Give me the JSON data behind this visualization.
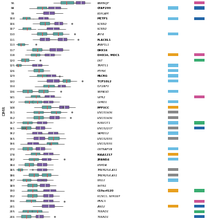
{
  "dmr_labels": [
    "56",
    "88",
    "99",
    "104",
    "106",
    "107",
    "110",
    "111",
    "113",
    "117",
    "118",
    "120",
    "125",
    "126",
    "129",
    "130",
    "134",
    "136",
    "141",
    "142",
    "148",
    "151",
    "152",
    "157",
    "161",
    "162",
    "165",
    "166",
    "170",
    "178",
    "182",
    "184",
    "185",
    "186",
    "187",
    "189",
    "190",
    "192",
    "196",
    "201",
    "205",
    "206"
  ],
  "gene_labels": [
    "FAM86JP",
    "CFAP299",
    "EGFLAM",
    "MCTP1",
    "KCNN2",
    "KCNN2",
    "AFF4",
    "PLAC8L1",
    "AFAP1L1",
    "DHX16",
    "DHX16, MDC1",
    "DST",
    "TRMT11",
    "PTPRK",
    "PACRG",
    "TCP10L2",
    "IGF2BP3",
    "SEMA3D",
    "VIPR2",
    "CSMD1",
    "PPP3CC",
    "LINC01606",
    "LINC01606",
    "RUNX1T1",
    "LINC02237",
    "SAMD12",
    "LINC02055",
    "LINC02055",
    "CNTNAP3B",
    "KIAA1217",
    "ZFAND4",
    "LRMDA",
    "TMEM254-AS1",
    "TMEM254-AS1",
    "NRG3",
    "SHTN1",
    "C19orf120",
    "KCNC1, SERGEF",
    "PRRL5",
    "ANO2",
    "TXNRD1",
    "TXNRD1"
  ],
  "gene_bold": [
    false,
    true,
    false,
    true,
    false,
    false,
    false,
    true,
    false,
    true,
    true,
    false,
    false,
    false,
    true,
    true,
    false,
    false,
    false,
    false,
    true,
    false,
    false,
    false,
    false,
    false,
    false,
    false,
    false,
    true,
    true,
    false,
    false,
    false,
    false,
    false,
    true,
    false,
    false,
    false,
    false,
    false
  ],
  "teal_color": "#5CA8A3",
  "purple_color": "#7B5EA7",
  "blue_sq": "#6BBDE3",
  "orange_sq": "#E8A020",
  "gray_sq": "#8A8A8A",
  "green_sq": "#3AAD72",
  "dark_blue_sq": "#2466A8",
  "pink_sq": "#CC5595",
  "rows": [
    {
      "dmr": "56",
      "boxes": [
        {
          "q1": 0.58,
          "med": 0.65,
          "q3": 0.74,
          "wlo": 0.48,
          "whi": 0.82,
          "col": "teal"
        },
        {
          "q1": 0.77,
          "med": 0.83,
          "q3": 0.88,
          "wlo": 0.7,
          "whi": 0.95,
          "col": "purple"
        }
      ],
      "sq1": null,
      "sq2": "pink"
    },
    {
      "dmr": "88",
      "boxes": [
        {
          "q1": 0.28,
          "med": 0.34,
          "q3": 0.4,
          "wlo": 0.18,
          "whi": 0.5,
          "col": "teal"
        },
        {
          "q1": 0.42,
          "med": 0.5,
          "q3": 0.58,
          "wlo": 0.32,
          "whi": 0.66,
          "col": "purple"
        }
      ],
      "sq1": "blue",
      "sq2": "dark_blue"
    },
    {
      "dmr": "99",
      "boxes": [
        {
          "q1": 0.36,
          "med": 0.43,
          "q3": 0.5,
          "wlo": 0.26,
          "whi": 0.6,
          "col": "purple"
        }
      ],
      "sq1": null,
      "sq2": null
    },
    {
      "dmr": "104",
      "boxes": [
        {
          "q1": 0.1,
          "med": 0.14,
          "q3": 0.19,
          "wlo": 0.05,
          "whi": 0.24,
          "col": "teal"
        },
        {
          "q1": 0.3,
          "med": 0.36,
          "q3": 0.42,
          "wlo": 0.22,
          "whi": 0.5,
          "col": "purple"
        }
      ],
      "sq1": "blue",
      "sq2": "dark_blue"
    },
    {
      "dmr": "106",
      "boxes": [
        {
          "q1": 0.32,
          "med": 0.38,
          "q3": 0.44,
          "wlo": 0.22,
          "whi": 0.52,
          "col": "teal"
        },
        {
          "q1": 0.5,
          "med": 0.55,
          "q3": 0.6,
          "wlo": 0.43,
          "whi": 0.66,
          "col": "purple",
          "outlier": 0.72
        }
      ],
      "sq1": null,
      "sq2": null
    },
    {
      "dmr": "107",
      "boxes": [
        {
          "q1": 0.1,
          "med": 0.15,
          "q3": 0.2,
          "wlo": 0.04,
          "whi": 0.26,
          "col": "teal"
        },
        {
          "q1": 0.4,
          "med": 0.48,
          "q3": 0.56,
          "wlo": 0.28,
          "whi": 0.64,
          "col": "purple"
        }
      ],
      "sq1": null,
      "sq2": null
    },
    {
      "dmr": "110",
      "boxes": [
        {
          "q1": 0.28,
          "med": 0.34,
          "q3": 0.4,
          "wlo": 0.2,
          "whi": 0.48,
          "col": "teal"
        },
        {
          "q1": 0.48,
          "med": 0.54,
          "q3": 0.6,
          "wlo": 0.38,
          "whi": 0.68,
          "col": "teal",
          "outlier": 0.75
        }
      ],
      "sq1": "blue",
      "sq2": null
    },
    {
      "dmr": "111",
      "boxes": [
        {
          "q1": 0.32,
          "med": 0.38,
          "q3": 0.44,
          "wlo": 0.22,
          "whi": 0.52,
          "col": "purple"
        },
        {
          "q1": 0.54,
          "med": 0.6,
          "q3": 0.66,
          "wlo": 0.44,
          "whi": 0.74,
          "col": "purple",
          "outlier": 0.8
        }
      ],
      "sq1": null,
      "sq2": null
    },
    {
      "dmr": "113",
      "boxes": [
        {
          "q1": 0.04,
          "med": 0.07,
          "q3": 0.12,
          "wlo": 0.01,
          "whi": 0.17,
          "col": "teal",
          "outlier": 0.26
        }
      ],
      "sq1": null,
      "sq2": null
    },
    {
      "dmr": "117",
      "boxes": [
        {
          "q1": 0.22,
          "med": 0.28,
          "q3": 0.34,
          "wlo": 0.14,
          "whi": 0.42,
          "col": "teal"
        },
        {
          "q1": 0.44,
          "med": 0.52,
          "q3": 0.6,
          "wlo": 0.32,
          "whi": 0.68,
          "col": "purple"
        }
      ],
      "sq1": null,
      "sq2": null
    },
    {
      "dmr": "118",
      "boxes": [
        {
          "q1": 0.2,
          "med": 0.26,
          "q3": 0.32,
          "wlo": 0.12,
          "whi": 0.4,
          "col": "teal"
        },
        {
          "q1": 0.38,
          "med": 0.44,
          "q3": 0.5,
          "wlo": 0.28,
          "whi": 0.58,
          "col": "purple"
        }
      ],
      "sq1": "orange",
      "sq2": "pink"
    },
    {
      "dmr": "120",
      "boxes": [
        {
          "q1": 0.08,
          "med": 0.12,
          "q3": 0.18,
          "wlo": 0.03,
          "whi": 0.25,
          "col": "teal",
          "outlier": 0.32
        }
      ],
      "sq1": null,
      "sq2": "green"
    },
    {
      "dmr": "125",
      "boxes": [
        {
          "q1": 0.02,
          "med": 0.04,
          "q3": 0.08,
          "wlo": 0.0,
          "whi": 0.14,
          "col": "teal"
        },
        {
          "q1": 0.22,
          "med": 0.28,
          "q3": 0.34,
          "wlo": 0.14,
          "whi": 0.42,
          "col": "purple"
        }
      ],
      "sq1": "blue",
      "sq2": null
    },
    {
      "dmr": "126",
      "boxes": [
        {
          "q1": 0.24,
          "med": 0.3,
          "q3": 0.36,
          "wlo": 0.16,
          "whi": 0.44,
          "col": "teal"
        }
      ],
      "sq1": "blue",
      "sq2": null
    },
    {
      "dmr": "129",
      "boxes": [
        {
          "q1": 0.28,
          "med": 0.34,
          "q3": 0.4,
          "wlo": 0.18,
          "whi": 0.48,
          "col": "teal",
          "outlier": 0.56
        },
        {
          "q1": 0.4,
          "med": 0.46,
          "q3": 0.52,
          "wlo": 0.3,
          "whi": 0.6,
          "col": "purple"
        }
      ],
      "sq1": "blue",
      "sq2": null
    },
    {
      "dmr": "130",
      "boxes": [
        {
          "q1": 0.4,
          "med": 0.48,
          "q3": 0.56,
          "wlo": 0.28,
          "whi": 0.65,
          "col": "purple"
        },
        {
          "q1": 0.6,
          "med": 0.65,
          "q3": 0.7,
          "wlo": 0.52,
          "whi": 0.78,
          "col": "teal",
          "outlier": 0.85
        }
      ],
      "sq1": "blue",
      "sq2": null
    },
    {
      "dmr": "134",
      "boxes": [
        {
          "q1": 0.36,
          "med": 0.42,
          "q3": 0.5,
          "wlo": 0.25,
          "whi": 0.58,
          "col": "teal"
        },
        {
          "q1": 0.54,
          "med": 0.58,
          "q3": 0.64,
          "wlo": 0.46,
          "whi": 0.7,
          "col": "purple"
        }
      ],
      "sq1": null,
      "sq2": null
    },
    {
      "dmr": "136",
      "boxes": [
        {
          "q1": 0.1,
          "med": 0.16,
          "q3": 0.22,
          "wlo": 0.02,
          "whi": 0.3,
          "col": "teal"
        },
        {
          "q1": 0.3,
          "med": 0.36,
          "q3": 0.42,
          "wlo": 0.2,
          "whi": 0.5,
          "col": "teal",
          "outlier": 0.58
        }
      ],
      "sq1": "blue",
      "sq2": null
    },
    {
      "dmr": "141",
      "boxes": [
        {
          "q1": 0.2,
          "med": 0.26,
          "q3": 0.32,
          "wlo": 0.12,
          "whi": 0.4,
          "col": "teal"
        },
        {
          "q1": 0.38,
          "med": 0.44,
          "q3": 0.5,
          "wlo": 0.28,
          "whi": 0.58,
          "col": "purple"
        }
      ],
      "sq1": null,
      "sq2": "pink"
    },
    {
      "dmr": "142",
      "boxes": [
        {
          "q1": 0.12,
          "med": 0.18,
          "q3": 0.24,
          "wlo": 0.04,
          "whi": 0.32,
          "col": "teal"
        },
        {
          "q1": 0.22,
          "med": 0.28,
          "q3": 0.34,
          "wlo": 0.14,
          "whi": 0.42,
          "col": "teal"
        },
        {
          "q1": 0.36,
          "med": 0.42,
          "q3": 0.48,
          "wlo": 0.26,
          "whi": 0.56,
          "col": "purple"
        }
      ],
      "sq1": "blue",
      "sq2": null
    },
    {
      "dmr": "148",
      "boxes": [
        {
          "q1": 0.34,
          "med": 0.4,
          "q3": 0.46,
          "wlo": 0.24,
          "whi": 0.54,
          "col": "teal",
          "outlier": 0.6
        },
        {
          "q1": 0.56,
          "med": 0.62,
          "q3": 0.68,
          "wlo": 0.46,
          "whi": 0.76,
          "col": "purple"
        }
      ],
      "sq1": "orange",
      "sq2": null
    },
    {
      "dmr": "151",
      "boxes": [
        {
          "q1": 0.24,
          "med": 0.3,
          "q3": 0.36,
          "wlo": 0.14,
          "whi": 0.44,
          "col": "teal"
        },
        {
          "q1": 0.46,
          "med": 0.52,
          "q3": 0.58,
          "wlo": 0.36,
          "whi": 0.66,
          "col": "teal",
          "outlier": 0.72
        }
      ],
      "sq1": "gray",
      "sq2": null
    },
    {
      "dmr": "152",
      "boxes": [
        {
          "q1": 0.24,
          "med": 0.3,
          "q3": 0.36,
          "wlo": 0.14,
          "whi": 0.44,
          "col": "teal"
        },
        {
          "q1": 0.44,
          "med": 0.5,
          "q3": 0.56,
          "wlo": 0.34,
          "whi": 0.64,
          "col": "purple",
          "outlier": 0.7
        }
      ],
      "sq1": "gray",
      "sq2": null
    },
    {
      "dmr": "157",
      "boxes": [
        {
          "q1": 0.1,
          "med": 0.16,
          "q3": 0.22,
          "wlo": 0.02,
          "whi": 0.3,
          "col": "teal"
        },
        {
          "q1": 0.28,
          "med": 0.34,
          "q3": 0.4,
          "wlo": 0.18,
          "whi": 0.48,
          "col": "purple"
        }
      ],
      "sq1": "blue",
      "sq2": "green"
    },
    {
      "dmr": "161",
      "boxes": [
        {
          "q1": 0.08,
          "med": 0.14,
          "q3": 0.2,
          "wlo": 0.02,
          "whi": 0.28,
          "col": "teal"
        },
        {
          "q1": 0.26,
          "med": 0.32,
          "q3": 0.38,
          "wlo": 0.16,
          "whi": 0.46,
          "col": "purple",
          "outlier2": 0.1,
          "outlier3": 0.12
        }
      ],
      "sq1": "gray",
      "sq2": "dark_blue"
    },
    {
      "dmr": "162",
      "boxes": [
        {
          "q1": 0.22,
          "med": 0.28,
          "q3": 0.34,
          "wlo": 0.14,
          "whi": 0.42,
          "col": "purple"
        },
        {
          "q1": 0.42,
          "med": 0.48,
          "q3": 0.54,
          "wlo": 0.32,
          "whi": 0.62,
          "col": "purple"
        }
      ],
      "sq1": "blue",
      "sq2": null
    },
    {
      "dmr": "165",
      "boxes": [
        {
          "q1": 0.24,
          "med": 0.3,
          "q3": 0.38,
          "wlo": 0.14,
          "whi": 0.46,
          "col": "purple"
        },
        {
          "q1": 0.42,
          "med": 0.48,
          "q3": 0.56,
          "wlo": 0.32,
          "whi": 0.64,
          "col": "teal"
        }
      ],
      "sq1": "gray",
      "sq2": null
    },
    {
      "dmr": "166",
      "boxes": [
        {
          "q1": 0.16,
          "med": 0.22,
          "q3": 0.3,
          "wlo": 0.06,
          "whi": 0.38,
          "col": "purple",
          "outlier": 0.44
        },
        {
          "q1": 0.4,
          "med": 0.46,
          "q3": 0.54,
          "wlo": 0.28,
          "whi": 0.62,
          "col": "teal"
        }
      ],
      "sq1": null,
      "sq2": null
    },
    {
      "dmr": "170",
      "boxes": [
        {
          "q1": 0.1,
          "med": 0.16,
          "q3": 0.22,
          "wlo": 0.03,
          "whi": 0.3,
          "col": "teal"
        },
        {
          "q1": 0.26,
          "med": 0.32,
          "q3": 0.38,
          "wlo": 0.18,
          "whi": 0.46,
          "col": "purple"
        }
      ],
      "sq1": "blue",
      "sq2": null
    },
    {
      "dmr": "178",
      "boxes": [
        {
          "q1": 0.2,
          "med": 0.26,
          "q3": 0.32,
          "wlo": 0.12,
          "whi": 0.4,
          "col": "teal"
        },
        {
          "q1": 0.36,
          "med": 0.42,
          "q3": 0.48,
          "wlo": 0.26,
          "whi": 0.56,
          "col": "purple"
        }
      ],
      "sq1": "orange",
      "sq2": null
    },
    {
      "dmr": "182",
      "boxes": [
        {
          "q1": 0.18,
          "med": 0.24,
          "q3": 0.3,
          "wlo": 0.1,
          "whi": 0.38,
          "col": "teal"
        },
        {
          "q1": 0.34,
          "med": 0.4,
          "q3": 0.46,
          "wlo": 0.24,
          "whi": 0.54,
          "col": "purple",
          "outlier": 0.62
        }
      ],
      "sq1": "blue",
      "sq2": null
    },
    {
      "dmr": "184",
      "boxes": [
        {
          "q1": 0.12,
          "med": 0.18,
          "q3": 0.24,
          "wlo": 0.04,
          "whi": 0.32,
          "col": "teal"
        },
        {
          "q1": 0.28,
          "med": 0.34,
          "q3": 0.4,
          "wlo": 0.18,
          "whi": 0.48,
          "col": "purple"
        }
      ],
      "sq1": null,
      "sq2": null
    },
    {
      "dmr": "185",
      "boxes": [
        {
          "q1": 0.04,
          "med": 0.06,
          "q3": 0.1,
          "wlo": 0.01,
          "whi": 0.16,
          "col": "teal",
          "outlier": 0.22
        },
        {
          "q1": 0.28,
          "med": 0.34,
          "q3": 0.4,
          "wlo": 0.18,
          "whi": 0.48,
          "col": "purple"
        }
      ],
      "sq1": "gray",
      "sq2": null
    },
    {
      "dmr": "186",
      "boxes": [
        {
          "q1": 0.18,
          "med": 0.24,
          "q3": 0.3,
          "wlo": 0.1,
          "whi": 0.38,
          "col": "teal"
        },
        {
          "q1": 0.34,
          "med": 0.4,
          "q3": 0.46,
          "wlo": 0.24,
          "whi": 0.54,
          "col": "teal"
        }
      ],
      "sq1": "gray",
      "sq2": null
    },
    {
      "dmr": "187",
      "boxes": [
        {
          "q1": 0.1,
          "med": 0.14,
          "q3": 0.2,
          "wlo": 0.02,
          "whi": 0.28,
          "col": "teal",
          "outlier": 0.34
        },
        {
          "q1": 0.28,
          "med": 0.34,
          "q3": 0.4,
          "wlo": 0.18,
          "whi": 0.48,
          "col": "purple"
        }
      ],
      "sq1": "blue",
      "sq2": null
    },
    {
      "dmr": "189",
      "boxes": [
        {
          "q1": 0.16,
          "med": 0.22,
          "q3": 0.28,
          "wlo": 0.08,
          "whi": 0.36,
          "col": "teal"
        },
        {
          "q1": 0.32,
          "med": 0.38,
          "q3": 0.44,
          "wlo": 0.22,
          "whi": 0.52,
          "col": "purple"
        }
      ],
      "sq1": null,
      "sq2": null
    },
    {
      "dmr": "190",
      "boxes": [
        {
          "q1": 0.16,
          "med": 0.22,
          "q3": 0.28,
          "wlo": 0.08,
          "whi": 0.36,
          "col": "teal"
        },
        {
          "q1": 0.36,
          "med": 0.44,
          "q3": 0.52,
          "wlo": 0.24,
          "whi": 0.62,
          "col": "purple"
        }
      ],
      "sq1": "orange",
      "sq2": "green"
    },
    {
      "dmr": "192",
      "boxes": [
        {
          "q1": 0.16,
          "med": 0.22,
          "q3": 0.28,
          "wlo": 0.08,
          "whi": 0.36,
          "col": "teal"
        },
        {
          "q1": 0.36,
          "med": 0.42,
          "q3": 0.48,
          "wlo": 0.24,
          "whi": 0.56,
          "col": "purple"
        }
      ],
      "sq1": null,
      "sq2": null
    },
    {
      "dmr": "196",
      "boxes": [
        {
          "q1": 0.14,
          "med": 0.2,
          "q3": 0.26,
          "wlo": 0.05,
          "whi": 0.34,
          "col": "teal"
        },
        {
          "q1": 0.36,
          "med": 0.42,
          "q3": 0.48,
          "wlo": 0.26,
          "whi": 0.56,
          "col": "purple",
          "outlier": 0.62
        }
      ],
      "sq1": null,
      "sq2": "pink"
    },
    {
      "dmr": "201",
      "boxes": [
        {
          "q1": 0.34,
          "med": 0.42,
          "q3": 0.5,
          "wlo": 0.22,
          "whi": 0.6,
          "col": "purple"
        }
      ],
      "sq1": "orange",
      "sq2": "dark_blue"
    },
    {
      "dmr": "205",
      "boxes": [
        {
          "q1": 0.1,
          "med": 0.16,
          "q3": 0.22,
          "wlo": 0.04,
          "whi": 0.28,
          "col": "teal"
        },
        {
          "q1": 0.22,
          "med": 0.28,
          "q3": 0.34,
          "wlo": 0.14,
          "whi": 0.42,
          "col": "teal"
        }
      ],
      "sq1": null,
      "sq2": "green"
    },
    {
      "dmr": "206",
      "boxes": [
        {
          "q1": 0.08,
          "med": 0.14,
          "q3": 0.2,
          "wlo": 0.01,
          "whi": 0.28,
          "col": "teal"
        },
        {
          "q1": 0.26,
          "med": 0.3,
          "q3": 0.36,
          "wlo": 0.16,
          "whi": 0.44,
          "col": "purple",
          "outlier": 0.5
        }
      ],
      "sq1": null,
      "sq2": "dark_blue"
    }
  ],
  "bg_color": "#FFFFFF"
}
